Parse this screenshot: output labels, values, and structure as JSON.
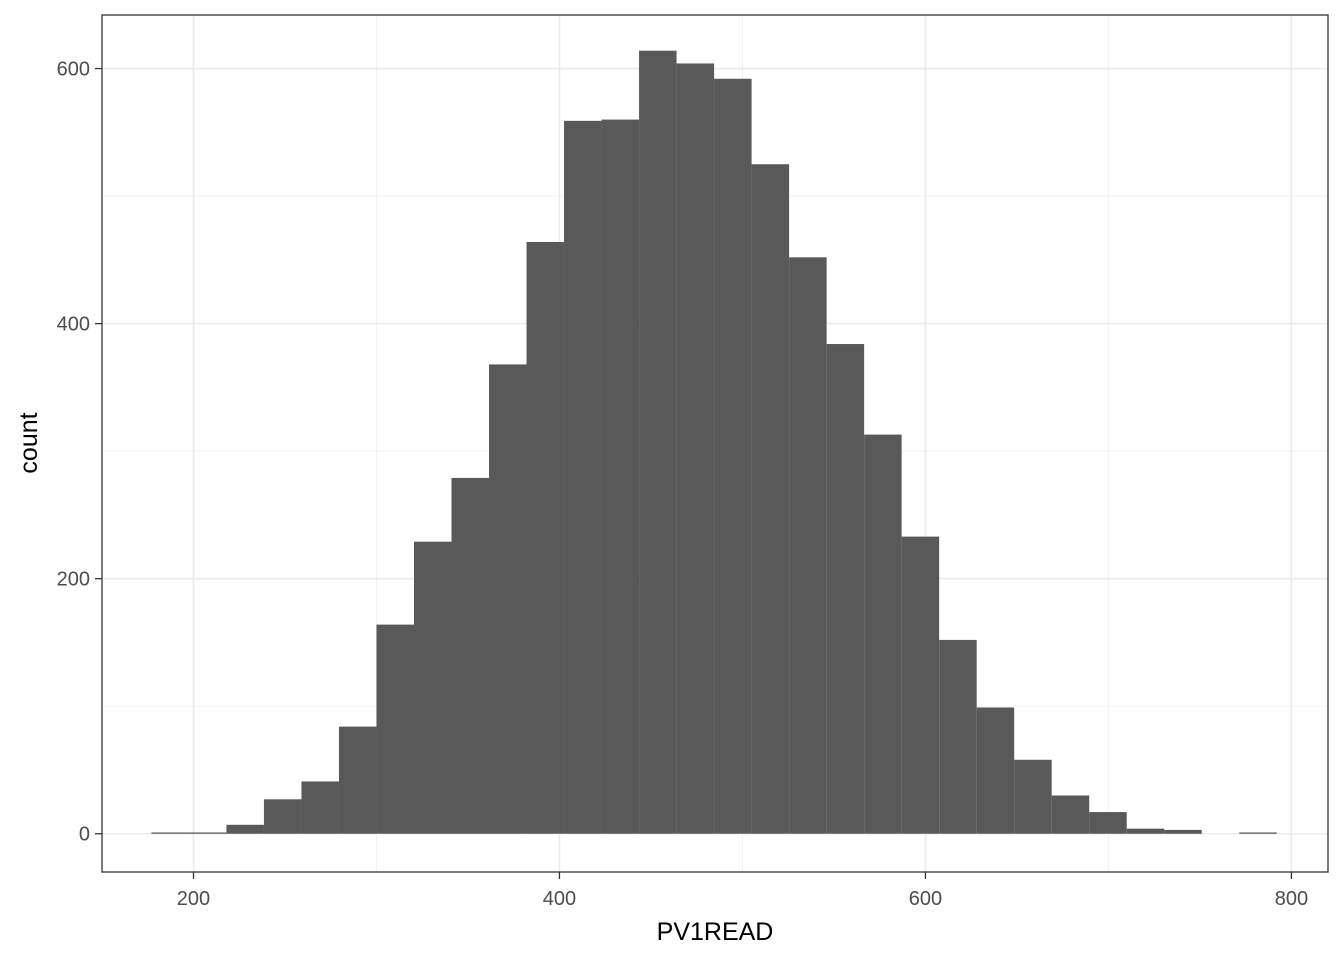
{
  "chart_data": {
    "type": "bar",
    "subtype": "histogram",
    "title": "",
    "xlabel": "PV1READ",
    "ylabel": "count",
    "xlim": [
      150,
      820
    ],
    "ylim": [
      -30,
      642
    ],
    "x_ticks": [
      200,
      400,
      600,
      800
    ],
    "x_tick_labels": [
      "200",
      "400",
      "600",
      "800"
    ],
    "y_ticks": [
      0,
      200,
      400,
      600
    ],
    "y_tick_labels": [
      "0",
      "200",
      "400",
      "600"
    ],
    "bin_width": 20.5,
    "bin_start": 177,
    "counts": [
      1,
      1,
      7,
      27,
      41,
      84,
      164,
      229,
      279,
      368,
      464,
      559,
      560,
      614,
      604,
      592,
      525,
      452,
      384,
      313,
      233,
      152,
      99,
      58,
      30,
      17,
      4,
      3,
      0,
      1
    ],
    "grid": true,
    "bar_color": "#595959",
    "legend": "none"
  }
}
